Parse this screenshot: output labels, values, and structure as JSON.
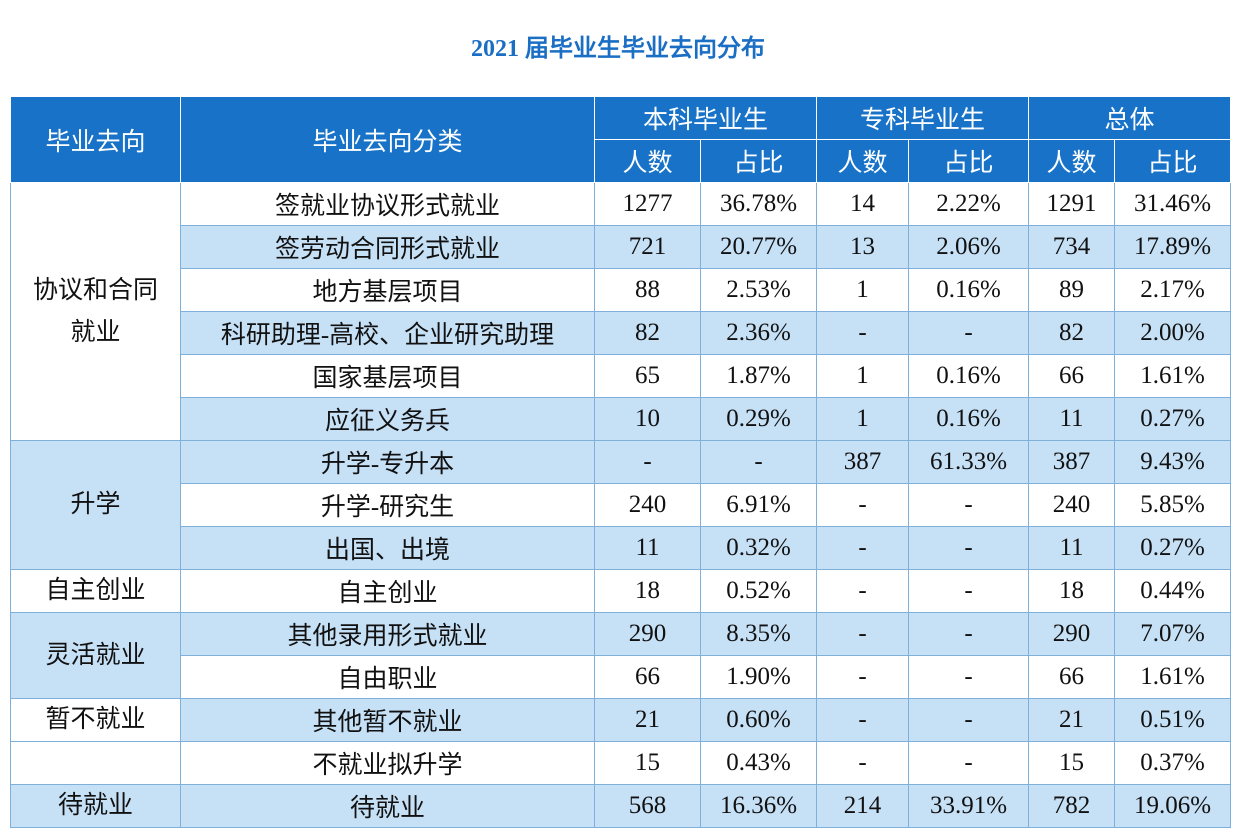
{
  "title": "2021 届毕业生毕业去向分布",
  "table": {
    "headers": {
      "group": "毕业去向",
      "category": "毕业去向分类",
      "columns": [
        "本科毕业生",
        "专科毕业生",
        "总体"
      ],
      "sub": [
        "人数",
        "占比"
      ]
    },
    "groups": [
      {
        "label": "协议和合同就业",
        "rows": [
          [
            "签就业协议形式就业",
            "1277",
            "36.78%",
            "14",
            "2.22%",
            "1291",
            "31.46%"
          ],
          [
            "签劳动合同形式就业",
            "721",
            "20.77%",
            "13",
            "2.06%",
            "734",
            "17.89%"
          ],
          [
            "地方基层项目",
            "88",
            "2.53%",
            "1",
            "0.16%",
            "89",
            "2.17%"
          ],
          [
            "科研助理-高校、企业研究助理",
            "82",
            "2.36%",
            "-",
            "-",
            "82",
            "2.00%"
          ],
          [
            "国家基层项目",
            "65",
            "1.87%",
            "1",
            "0.16%",
            "66",
            "1.61%"
          ],
          [
            "应征义务兵",
            "10",
            "0.29%",
            "1",
            "0.16%",
            "11",
            "0.27%"
          ]
        ]
      },
      {
        "label": "升学",
        "rows": [
          [
            "升学-专升本",
            "-",
            "-",
            "387",
            "61.33%",
            "387",
            "9.43%"
          ],
          [
            "升学-研究生",
            "240",
            "6.91%",
            "-",
            "-",
            "240",
            "5.85%"
          ],
          [
            "出国、出境",
            "11",
            "0.32%",
            "-",
            "-",
            "11",
            "0.27%"
          ]
        ]
      },
      {
        "label": "自主创业",
        "rows": [
          [
            "自主创业",
            "18",
            "0.52%",
            "-",
            "-",
            "18",
            "0.44%"
          ]
        ]
      },
      {
        "label": "灵活就业",
        "rows": [
          [
            "其他录用形式就业",
            "290",
            "8.35%",
            "-",
            "-",
            "290",
            "7.07%"
          ],
          [
            "自由职业",
            "66",
            "1.90%",
            "-",
            "-",
            "66",
            "1.61%"
          ]
        ]
      },
      {
        "label": "暂不就业",
        "rows": [
          [
            "其他暂不就业",
            "21",
            "0.60%",
            "-",
            "-",
            "21",
            "0.51%"
          ]
        ]
      },
      {
        "rows": [
          [
            "不就业拟升学",
            "15",
            "0.43%",
            "-",
            "-",
            "15",
            "0.37%"
          ]
        ]
      },
      {
        "label": "待就业",
        "rows": [
          [
            "待就业",
            "568",
            "16.36%",
            "214",
            "33.91%",
            "782",
            "19.06%"
          ]
        ]
      }
    ]
  }
}
